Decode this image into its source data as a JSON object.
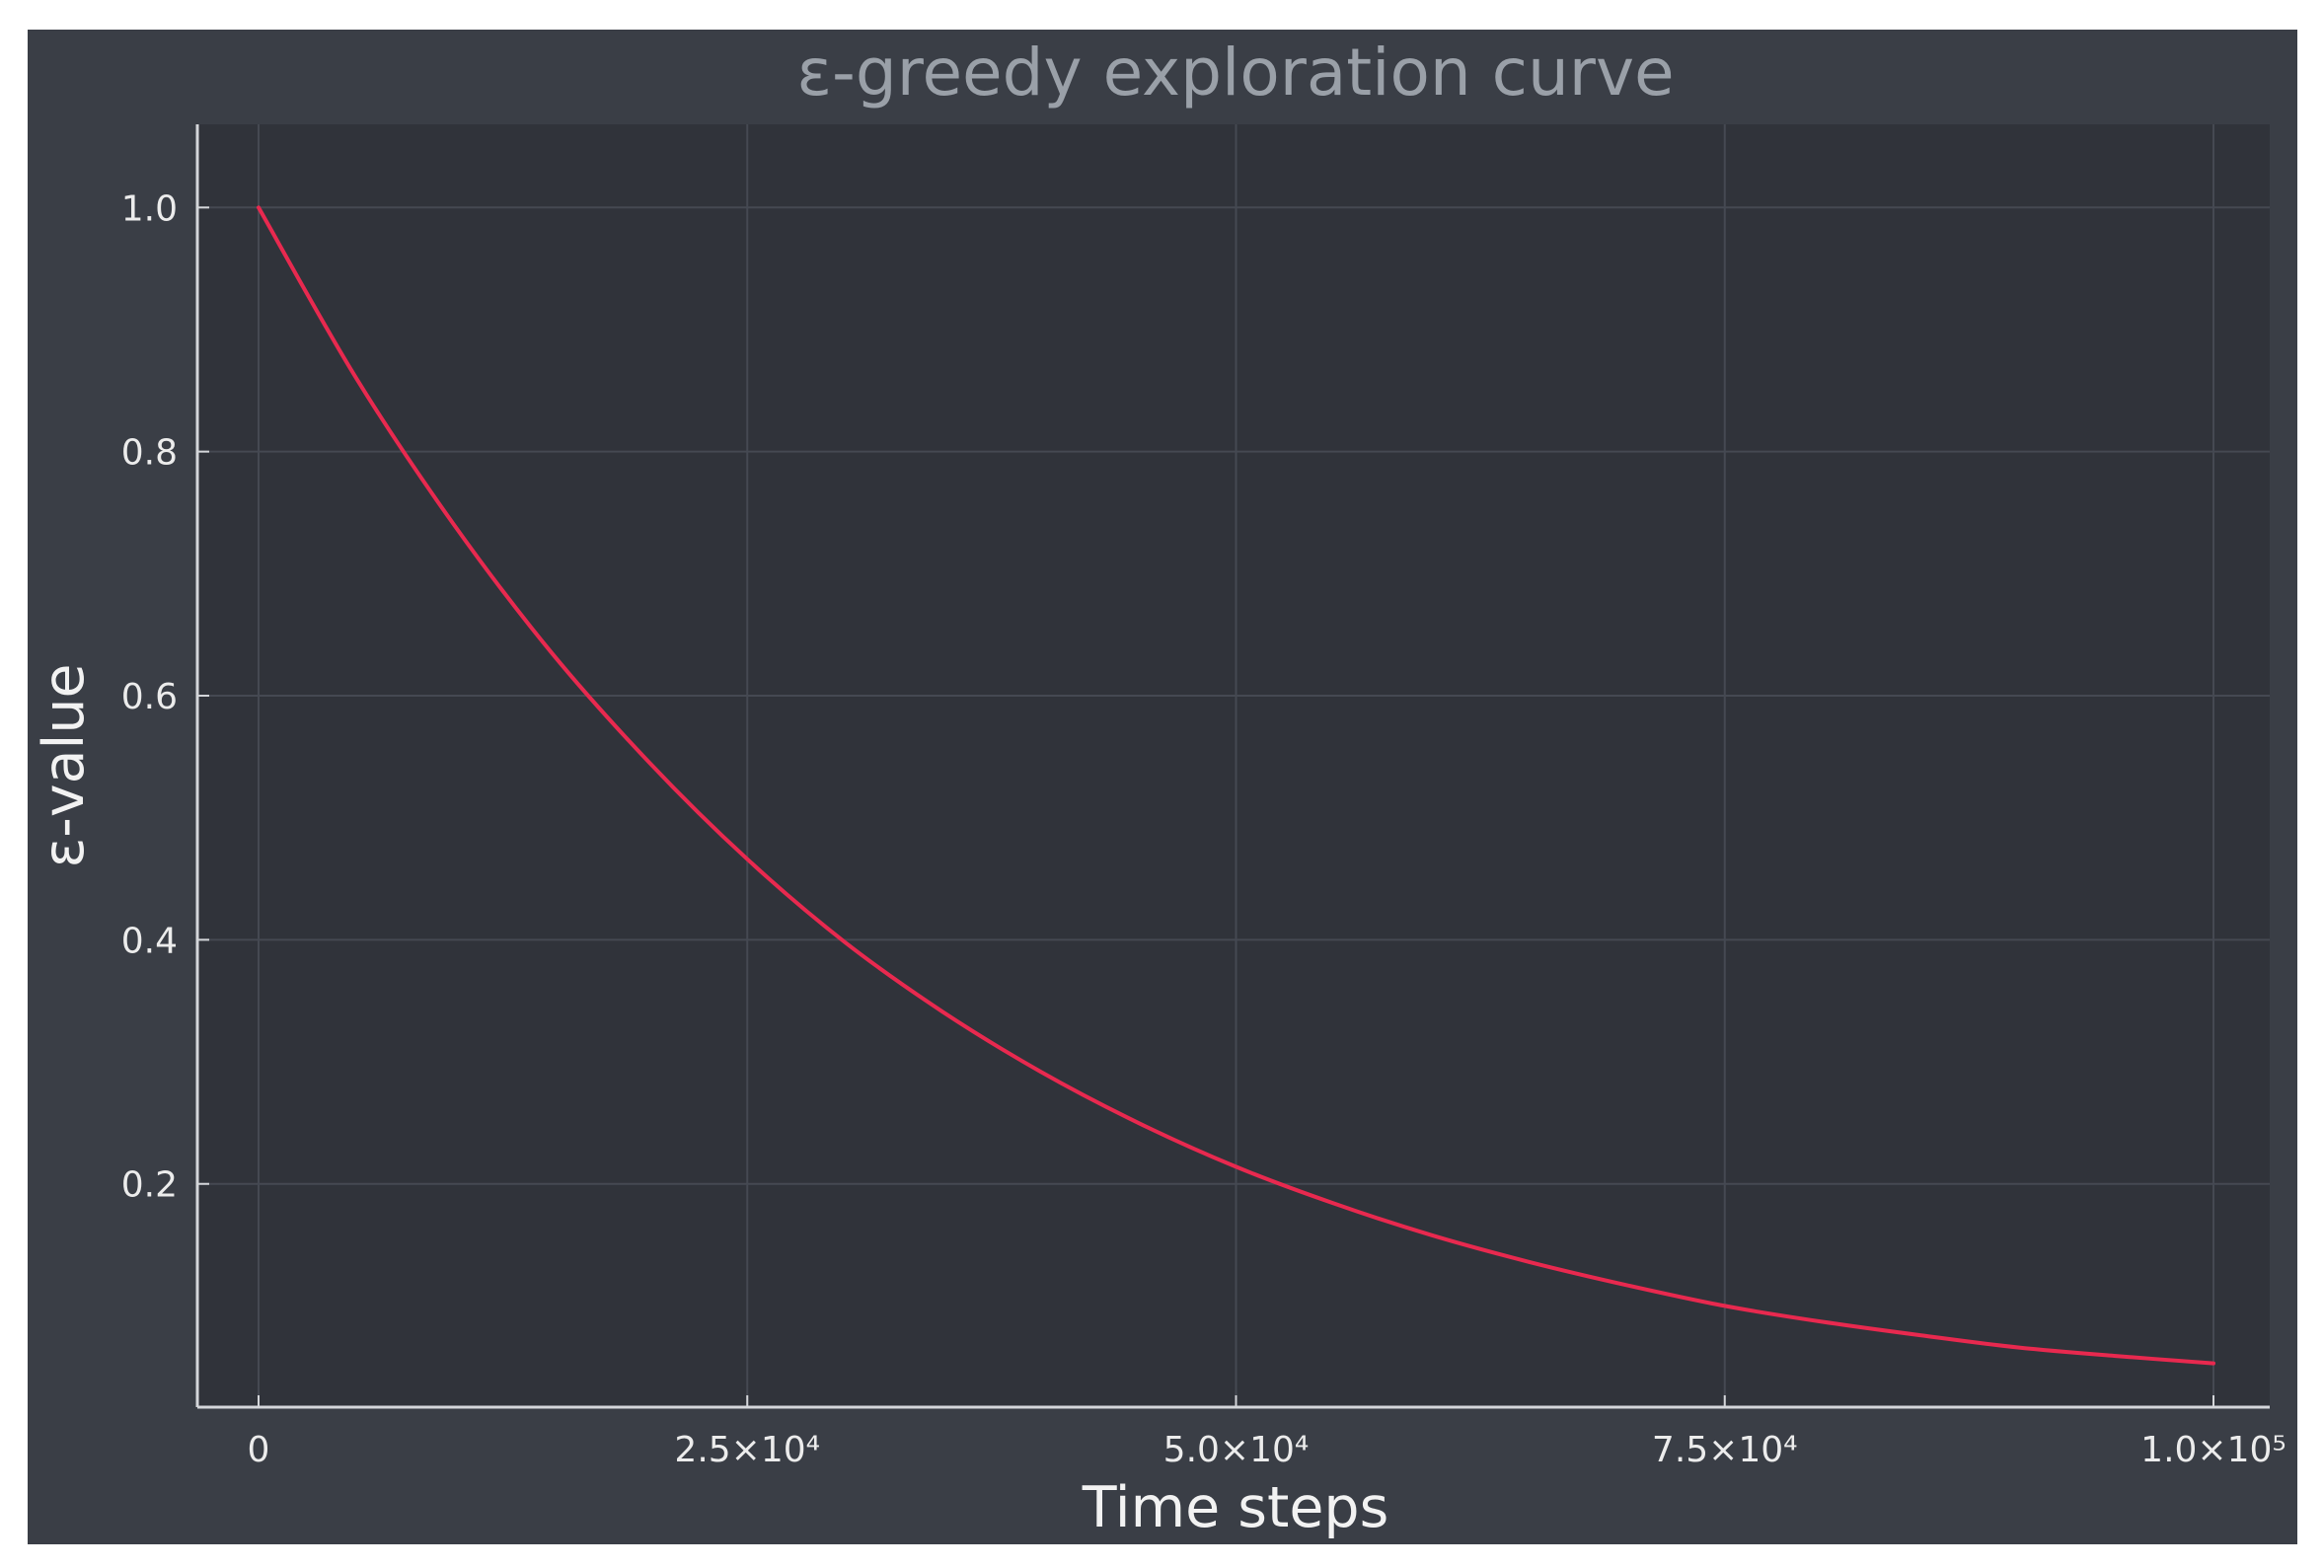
{
  "chart_data": {
    "type": "line",
    "title": "ε-greedy exploration curve",
    "xlabel": "Time steps",
    "ylabel": "ε-value",
    "xlim": [
      0,
      100000
    ],
    "ylim": [
      0.03,
      1.035
    ],
    "x_ticks": [
      {
        "value": 0,
        "label": "0"
      },
      {
        "value": 25000,
        "label": "2.5×10⁴"
      },
      {
        "value": 50000,
        "label": "5.0×10⁴"
      },
      {
        "value": 75000,
        "label": "7.5×10⁴"
      },
      {
        "value": 100000,
        "label": "1.0×10⁵"
      }
    ],
    "y_ticks": [
      {
        "value": 0.2,
        "label": "0.2"
      },
      {
        "value": 0.4,
        "label": "0.4"
      },
      {
        "value": 0.6,
        "label": "0.6"
      },
      {
        "value": 0.8,
        "label": "0.8"
      },
      {
        "value": 1.0,
        "label": "1.0"
      }
    ],
    "grid": true,
    "legend": "none",
    "series": [
      {
        "color": "#e8294f",
        "x": [
          0,
          5000,
          10000,
          15000,
          20000,
          25000,
          30000,
          35000,
          40000,
          45000,
          50000,
          55000,
          60000,
          65000,
          70000,
          75000,
          80000,
          85000,
          90000,
          95000,
          100000
        ],
        "y": [
          1.0,
          0.86,
          0.74,
          0.635,
          0.545,
          0.466,
          0.398,
          0.341,
          0.292,
          0.25,
          0.214,
          0.184,
          0.158,
          0.136,
          0.117,
          0.1,
          0.087,
          0.076,
          0.066,
          0.059,
          0.053
        ]
      }
    ]
  },
  "colors": {
    "figure_background": "#3a3e46",
    "plot_background": "#30333a",
    "line": "#e8294f"
  }
}
